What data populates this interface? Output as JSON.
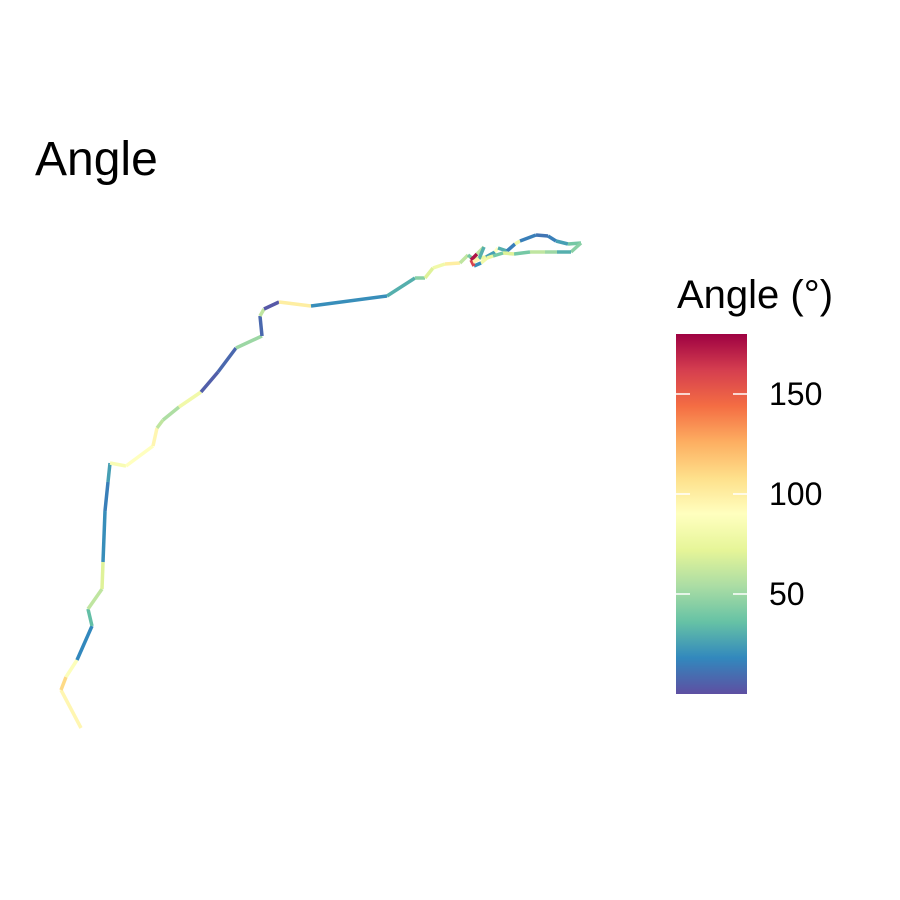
{
  "chart_data": {
    "type": "line",
    "title": "Angle",
    "legend": {
      "title": "Angle (°)",
      "position": "right",
      "scale": "Spectral (reversed)",
      "range": [
        0,
        180
      ],
      "ticks": [
        50,
        100,
        150
      ],
      "tick_labels": [
        "50",
        "100",
        "150"
      ]
    },
    "grid": false,
    "axes_visible": false,
    "missing_value_color": "#7f7f7f",
    "palette": [
      "#5E4FA2",
      "#3288BD",
      "#66C2A5",
      "#ABDDA4",
      "#E6F598",
      "#FFFFBF",
      "#FEE08B",
      "#FDAE61",
      "#F46D43",
      "#D53E4F",
      "#9E0142"
    ],
    "series": [
      {
        "x": [
          81,
          61,
          66,
          77,
          92,
          88,
          102,
          103,
          105,
          108,
          110,
          126,
          153,
          157,
          163,
          179,
          201,
          218,
          236,
          262,
          260,
          264,
          279,
          311,
          387,
          415,
          425,
          433,
          445,
          460,
          468,
          473,
          486,
          495,
          498,
          507,
          515,
          520,
          536,
          548,
          556,
          568,
          581,
          571,
          557,
          545,
          530,
          514,
          503,
          493,
          487,
          481,
          474,
          471,
          477,
          484,
          479,
          473
        ],
        "y": [
          728,
          690,
          677,
          660,
          626,
          609,
          589,
          562,
          511,
          482,
          463,
          466,
          446,
          428,
          420,
          407,
          392,
          372,
          348,
          336,
          316,
          309,
          302,
          306,
          296,
          278,
          278,
          268,
          264,
          263,
          255,
          259,
          257,
          252,
          248,
          251,
          244,
          241,
          235,
          236,
          241,
          244,
          243,
          252,
          252,
          252,
          252,
          254,
          253,
          256,
          258,
          263,
          266,
          260,
          254,
          247,
          259,
          262
        ],
        "angle": [
          null,
          95,
          110,
          88,
          18,
          35,
          60,
          70,
          20,
          15,
          25,
          85,
          90,
          95,
          60,
          55,
          80,
          5,
          8,
          50,
          8,
          60,
          3,
          100,
          20,
          30,
          45,
          70,
          80,
          100,
          60,
          40,
          75,
          25,
          90,
          30,
          15,
          80,
          15,
          12,
          15,
          25,
          40,
          45,
          30,
          50,
          60,
          40,
          70,
          40,
          75,
          80,
          20,
          160,
          175,
          60,
          30,
          95
        ]
      }
    ]
  }
}
